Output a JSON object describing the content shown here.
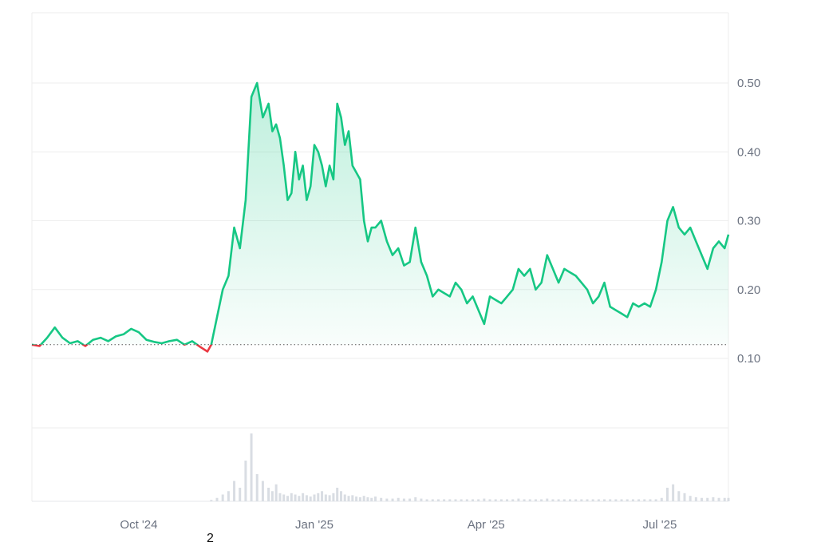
{
  "chart_data": {
    "type": "line",
    "x_tick_labels": [
      "Oct '24",
      "Jan '25",
      "Apr '25",
      "Jul '25"
    ],
    "y_tick_labels": [
      "0.10",
      "0.20",
      "0.30",
      "0.40",
      "0.50"
    ],
    "y_ticks": [
      0.1,
      0.2,
      0.3,
      0.4,
      0.5
    ],
    "ylim": [
      0.0,
      0.6
    ],
    "xlim": [
      "2024-08-06",
      "2025-08-06"
    ],
    "baseline": 0.12,
    "grid": true,
    "legend": "none",
    "colors": {
      "up": "#16c784",
      "down": "#ea3943",
      "grid": "#eeeeee",
      "volume": "#d9dde3"
    },
    "series": [
      {
        "x": [
          "2024-08-06",
          "2024-08-10",
          "2024-08-14",
          "2024-08-18",
          "2024-08-22",
          "2024-08-26",
          "2024-08-30",
          "2024-09-03",
          "2024-09-07",
          "2024-09-11",
          "2024-09-15",
          "2024-09-19",
          "2024-09-23",
          "2024-09-27",
          "2024-10-01",
          "2024-10-05",
          "2024-10-09",
          "2024-10-13",
          "2024-10-17",
          "2024-10-21",
          "2024-10-25",
          "2024-10-29",
          "2024-11-02",
          "2024-11-06",
          "2024-11-08",
          "2024-11-11",
          "2024-11-14",
          "2024-11-17",
          "2024-11-20",
          "2024-11-23",
          "2024-11-26",
          "2024-11-29",
          "2024-12-02",
          "2024-12-05",
          "2024-12-08",
          "2024-12-10",
          "2024-12-12",
          "2024-12-14",
          "2024-12-16",
          "2024-12-18",
          "2024-12-20",
          "2024-12-22",
          "2024-12-24",
          "2024-12-26",
          "2024-12-28",
          "2024-12-30",
          "2025-01-01",
          "2025-01-03",
          "2025-01-05",
          "2025-01-07",
          "2025-01-09",
          "2025-01-11",
          "2025-01-13",
          "2025-01-15",
          "2025-01-17",
          "2025-01-19",
          "2025-01-21",
          "2025-01-23",
          "2025-01-25",
          "2025-01-27",
          "2025-01-29",
          "2025-01-31",
          "2025-02-02",
          "2025-02-05",
          "2025-02-08",
          "2025-02-11",
          "2025-02-14",
          "2025-02-17",
          "2025-02-20",
          "2025-02-23",
          "2025-02-26",
          "2025-03-01",
          "2025-03-04",
          "2025-03-07",
          "2025-03-10",
          "2025-03-13",
          "2025-03-16",
          "2025-03-19",
          "2025-03-22",
          "2025-03-25",
          "2025-03-28",
          "2025-03-31",
          "2025-04-03",
          "2025-04-06",
          "2025-04-09",
          "2025-04-12",
          "2025-04-15",
          "2025-04-18",
          "2025-04-21",
          "2025-04-24",
          "2025-04-27",
          "2025-04-30",
          "2025-05-03",
          "2025-05-06",
          "2025-05-09",
          "2025-05-12",
          "2025-05-15",
          "2025-05-18",
          "2025-05-21",
          "2025-05-24",
          "2025-05-27",
          "2025-05-30",
          "2025-06-02",
          "2025-06-05",
          "2025-06-08",
          "2025-06-11",
          "2025-06-14",
          "2025-06-17",
          "2025-06-20",
          "2025-06-23",
          "2025-06-26",
          "2025-06-29",
          "2025-07-02",
          "2025-07-05",
          "2025-07-08",
          "2025-07-11",
          "2025-07-14",
          "2025-07-17",
          "2025-07-20",
          "2025-07-23",
          "2025-07-26",
          "2025-07-29",
          "2025-08-01",
          "2025-08-04",
          "2025-08-06"
        ],
        "y": [
          0.12,
          0.118,
          0.13,
          0.145,
          0.13,
          0.122,
          0.125,
          0.118,
          0.127,
          0.13,
          0.125,
          0.132,
          0.135,
          0.143,
          0.138,
          0.127,
          0.124,
          0.122,
          0.125,
          0.127,
          0.12,
          0.125,
          0.117,
          0.11,
          0.12,
          0.16,
          0.2,
          0.22,
          0.29,
          0.26,
          0.33,
          0.48,
          0.5,
          0.45,
          0.47,
          0.43,
          0.44,
          0.42,
          0.38,
          0.33,
          0.34,
          0.4,
          0.36,
          0.38,
          0.33,
          0.35,
          0.41,
          0.4,
          0.38,
          0.35,
          0.38,
          0.36,
          0.47,
          0.45,
          0.41,
          0.43,
          0.38,
          0.37,
          0.36,
          0.3,
          0.27,
          0.29,
          0.29,
          0.3,
          0.27,
          0.25,
          0.26,
          0.235,
          0.24,
          0.29,
          0.24,
          0.22,
          0.19,
          0.2,
          0.195,
          0.19,
          0.21,
          0.2,
          0.18,
          0.19,
          0.17,
          0.15,
          0.19,
          0.185,
          0.18,
          0.19,
          0.2,
          0.23,
          0.22,
          0.23,
          0.2,
          0.21,
          0.25,
          0.23,
          0.21,
          0.23,
          0.225,
          0.22,
          0.21,
          0.2,
          0.18,
          0.19,
          0.21,
          0.175,
          0.17,
          0.165,
          0.16,
          0.18,
          0.175,
          0.18,
          0.175,
          0.2,
          0.24,
          0.3,
          0.32,
          0.29,
          0.28,
          0.29,
          0.27,
          0.25,
          0.23,
          0.26,
          0.27,
          0.26,
          0.28
        ]
      }
    ],
    "volume": [
      0,
      0,
      0,
      0,
      0,
      0,
      0,
      0,
      0,
      0,
      0,
      0,
      0,
      0,
      0,
      0,
      0,
      0,
      0,
      0,
      0,
      0,
      0,
      0,
      0.02,
      0.05,
      0.1,
      0.15,
      0.3,
      0.2,
      0.6,
      1.0,
      0.4,
      0.3,
      0.2,
      0.15,
      0.25,
      0.12,
      0.1,
      0.08,
      0.12,
      0.1,
      0.08,
      0.12,
      0.09,
      0.07,
      0.1,
      0.12,
      0.15,
      0.1,
      0.09,
      0.12,
      0.2,
      0.15,
      0.1,
      0.08,
      0.09,
      0.07,
      0.06,
      0.08,
      0.06,
      0.05,
      0.07,
      0.05,
      0.04,
      0.04,
      0.05,
      0.04,
      0.04,
      0.06,
      0.04,
      0.03,
      0.03,
      0.03,
      0.03,
      0.03,
      0.03,
      0.03,
      0.03,
      0.03,
      0.03,
      0.04,
      0.03,
      0.03,
      0.03,
      0.03,
      0.03,
      0.04,
      0.03,
      0.03,
      0.03,
      0.03,
      0.04,
      0.03,
      0.03,
      0.03,
      0.03,
      0.03,
      0.03,
      0.03,
      0.03,
      0.03,
      0.03,
      0.03,
      0.03,
      0.03,
      0.03,
      0.03,
      0.03,
      0.03,
      0.03,
      0.03,
      0.05,
      0.2,
      0.25,
      0.15,
      0.12,
      0.08,
      0.06,
      0.05,
      0.05,
      0.06,
      0.05,
      0.05,
      0.05
    ]
  },
  "footnote": "2"
}
